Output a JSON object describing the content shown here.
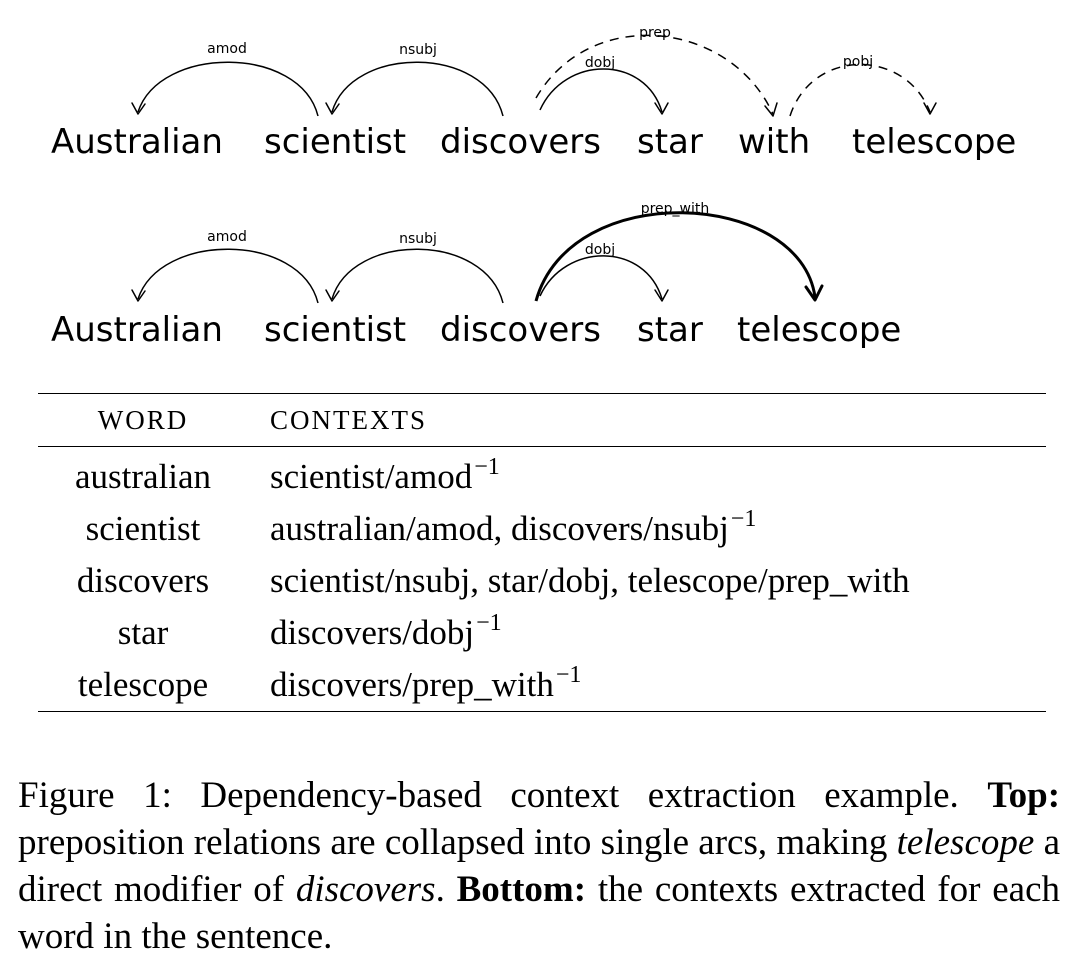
{
  "top_diagram": {
    "tokens": [
      "Australian",
      "scientist",
      "discovers",
      "star",
      "with",
      "telescope"
    ],
    "arcs": [
      {
        "label": "amod",
        "head": "scientist",
        "dependent": "Australian",
        "style": "solid"
      },
      {
        "label": "nsubj",
        "head": "discovers",
        "dependent": "scientist",
        "style": "solid"
      },
      {
        "label": "dobj",
        "head": "discovers",
        "dependent": "star",
        "style": "solid"
      },
      {
        "label": "prep",
        "head": "discovers",
        "dependent": "with",
        "style": "dashed"
      },
      {
        "label": "pobj",
        "head": "with",
        "dependent": "telescope",
        "style": "dashed"
      }
    ]
  },
  "bottom_diagram": {
    "tokens": [
      "Australian",
      "scientist",
      "discovers",
      "star",
      "telescope"
    ],
    "arcs": [
      {
        "label": "amod",
        "head": "scientist",
        "dependent": "Australian",
        "style": "solid"
      },
      {
        "label": "nsubj",
        "head": "discovers",
        "dependent": "scientist",
        "style": "solid"
      },
      {
        "label": "dobj",
        "head": "discovers",
        "dependent": "star",
        "style": "solid"
      },
      {
        "label": "prep_with",
        "head": "discovers",
        "dependent": "telescope",
        "style": "bold"
      }
    ]
  },
  "table": {
    "headers": [
      "WORD",
      "CONTEXTS"
    ],
    "rows": [
      {
        "word": "australian",
        "contexts": "scientist/amod",
        "sup": "−1"
      },
      {
        "word": "scientist",
        "contexts": "australian/amod, discovers/nsubj",
        "sup": "−1"
      },
      {
        "word": "discovers",
        "contexts": "scientist/nsubj, star/dobj, telescope/prep_with",
        "sup": ""
      },
      {
        "word": "star",
        "contexts": "discovers/dobj",
        "sup": "−1"
      },
      {
        "word": "telescope",
        "contexts": "discovers/prep_with",
        "sup": "−1"
      }
    ]
  },
  "caption": {
    "lead": "Figure 1:  Dependency-based context extraction example.",
    "top_label": "Top:",
    "top_text_1": " preposition relations are collapsed into single arcs, making ",
    "top_em_1": "telescope",
    "top_text_2": " a direct modifier of ",
    "top_em_2": "discovers",
    "top_text_3": ".",
    "bottom_label": "Bottom:",
    "bottom_text": " the contexts extracted for each word in the sentence."
  }
}
